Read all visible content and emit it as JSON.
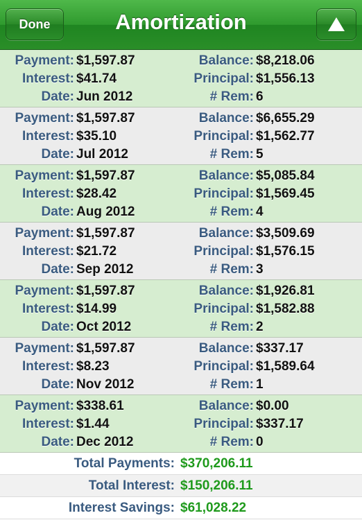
{
  "navbar": {
    "title": "Amortization",
    "done_label": "Done",
    "up_icon": "triangle-up-icon"
  },
  "labels": {
    "payment": "Payment:",
    "interest": "Interest:",
    "date": "Date:",
    "balance": "Balance:",
    "principal": "Principal:",
    "rem": "# Rem:"
  },
  "rows": [
    {
      "payment": "$1,597.87",
      "interest": "$41.74",
      "date": "Jun 2012",
      "balance": "$8,218.06",
      "principal": "$1,556.13",
      "rem": "6"
    },
    {
      "payment": "$1,597.87",
      "interest": "$35.10",
      "date": "Jul 2012",
      "balance": "$6,655.29",
      "principal": "$1,562.77",
      "rem": "5"
    },
    {
      "payment": "$1,597.87",
      "interest": "$28.42",
      "date": "Aug 2012",
      "balance": "$5,085.84",
      "principal": "$1,569.45",
      "rem": "4"
    },
    {
      "payment": "$1,597.87",
      "interest": "$21.72",
      "date": "Sep 2012",
      "balance": "$3,509.69",
      "principal": "$1,576.15",
      "rem": "3"
    },
    {
      "payment": "$1,597.87",
      "interest": "$14.99",
      "date": "Oct 2012",
      "balance": "$1,926.81",
      "principal": "$1,582.88",
      "rem": "2"
    },
    {
      "payment": "$1,597.87",
      "interest": "$8.23",
      "date": "Nov 2012",
      "balance": "$337.17",
      "principal": "$1,589.64",
      "rem": "1"
    },
    {
      "payment": "$338.61",
      "interest": "$1.44",
      "date": "Dec 2012",
      "balance": "$0.00",
      "principal": "$337.17",
      "rem": "0"
    }
  ],
  "totals": [
    {
      "label": "Total Payments:",
      "value": "$370,206.11"
    },
    {
      "label": "Total Interest:",
      "value": "$150,206.11"
    },
    {
      "label": "Interest Savings:",
      "value": "$61,028.22"
    }
  ],
  "colors": {
    "navbar_green": "#2f9a2e",
    "row_green": "#d6edd0",
    "row_gray": "#ececec",
    "label_blue": "#3a5b80",
    "total_green": "#1f9a1c"
  }
}
